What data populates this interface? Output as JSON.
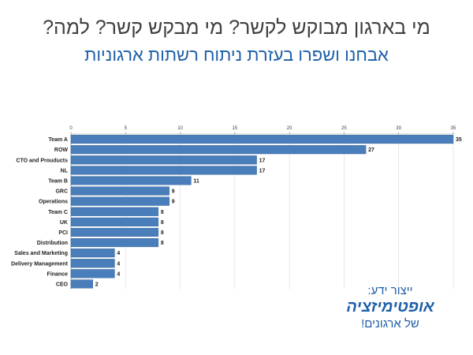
{
  "header": {
    "title": "מי בארגון מבוקש לקשר? מי מבקש קשר? למה?",
    "subtitle": "אבחנו ושפרו בעזרת ניתוח רשתות ארגוניות"
  },
  "promo": {
    "line1": "ייצור ידע:",
    "line2": "אופטימיזציה",
    "line3": "של ארגונים!"
  },
  "colors": {
    "bar": "#4a7ebb",
    "bar_stroke": "#2f5f94",
    "grid": "#d9d9d9",
    "axis": "#888888"
  },
  "chart_data": {
    "type": "bar",
    "orientation": "horizontal",
    "categories": [
      "Team A",
      "ROW",
      "CTO and Prouducts",
      "NL",
      "Team B",
      "GRC",
      "Operations",
      "Team C",
      "UK",
      "PCI",
      "Distribution",
      "Sales and Marketing",
      "Delivery Management",
      "Finance",
      "CEO"
    ],
    "values": [
      35,
      27,
      17,
      17,
      11,
      9,
      9,
      8,
      8,
      8,
      8,
      4,
      4,
      4,
      2
    ],
    "xlim": [
      0,
      35
    ],
    "xticks": [
      0,
      5,
      10,
      15,
      20,
      25,
      30,
      35
    ],
    "axis_position": "top",
    "grid": true,
    "data_labels": true,
    "legend": false
  }
}
